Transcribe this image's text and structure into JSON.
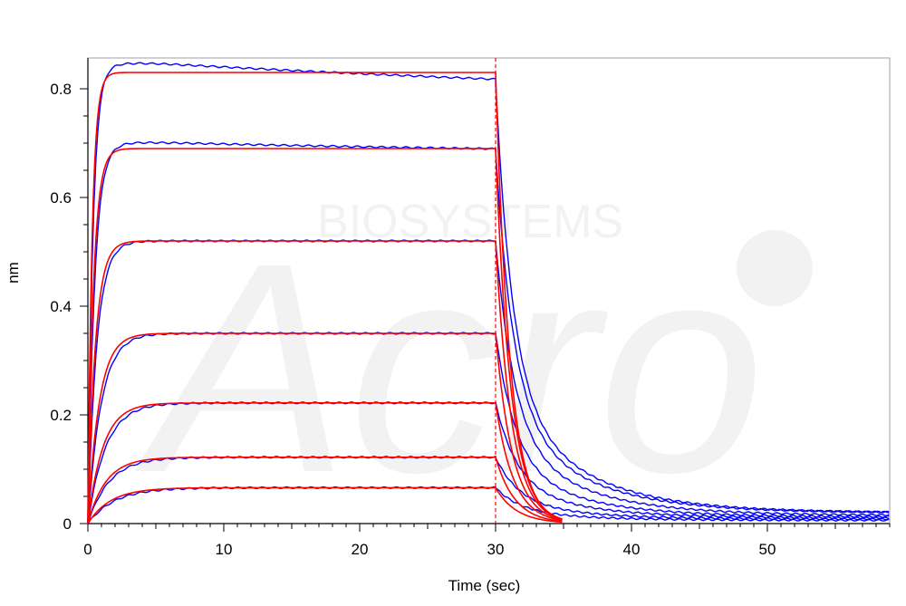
{
  "chart_data": {
    "type": "line",
    "title": "",
    "xlabel": "Time (sec)",
    "ylabel": "nm",
    "xlim": [
      0,
      59
    ],
    "ylim": [
      -0.02,
      0.86
    ],
    "xticks": [
      0,
      10,
      20,
      30,
      40,
      50
    ],
    "yticks": [
      0,
      0.2,
      0.4,
      0.6,
      0.8
    ],
    "xtick_labels": [
      "0",
      "10",
      "20",
      "30",
      "40",
      "50"
    ],
    "ytick_labels": [
      "0",
      "0.2",
      "0.4",
      "0.6",
      "0.8"
    ],
    "grid": false,
    "legend": "none",
    "watermark": {
      "brand": "Acro",
      "sub": "BIOSYSTEMS"
    },
    "association_end": 30,
    "dissociation_end_fit": 35,
    "colors": {
      "measured": "#0000ff",
      "fit": "#ff0000"
    },
    "series": [
      {
        "plateau": 0.83,
        "k_on": 3.2,
        "k_off": 0.95,
        "drift": -0.02,
        "measured_peak": 0.855,
        "baseline": 0.02
      },
      {
        "plateau": 0.69,
        "k_on": 2.4,
        "k_off": 0.9,
        "drift": -0.005,
        "measured_peak": 0.705,
        "baseline": 0.02
      },
      {
        "plateau": 0.52,
        "k_on": 1.8,
        "k_off": 0.85,
        "drift": 0.0,
        "measured_peak": 0.52,
        "baseline": 0.015
      },
      {
        "plateau": 0.35,
        "k_on": 1.2,
        "k_off": 0.8,
        "drift": 0.0,
        "measured_peak": 0.35,
        "baseline": 0.012
      },
      {
        "plateau": 0.222,
        "k_on": 0.9,
        "k_off": 0.75,
        "drift": 0.0,
        "measured_peak": 0.222,
        "baseline": 0.01
      },
      {
        "plateau": 0.122,
        "k_on": 0.75,
        "k_off": 0.7,
        "drift": 0.0,
        "measured_peak": 0.122,
        "baseline": 0.008
      },
      {
        "plateau": 0.066,
        "k_on": 0.6,
        "k_off": 0.65,
        "drift": 0.0,
        "measured_peak": 0.066,
        "baseline": 0.006
      }
    ]
  }
}
